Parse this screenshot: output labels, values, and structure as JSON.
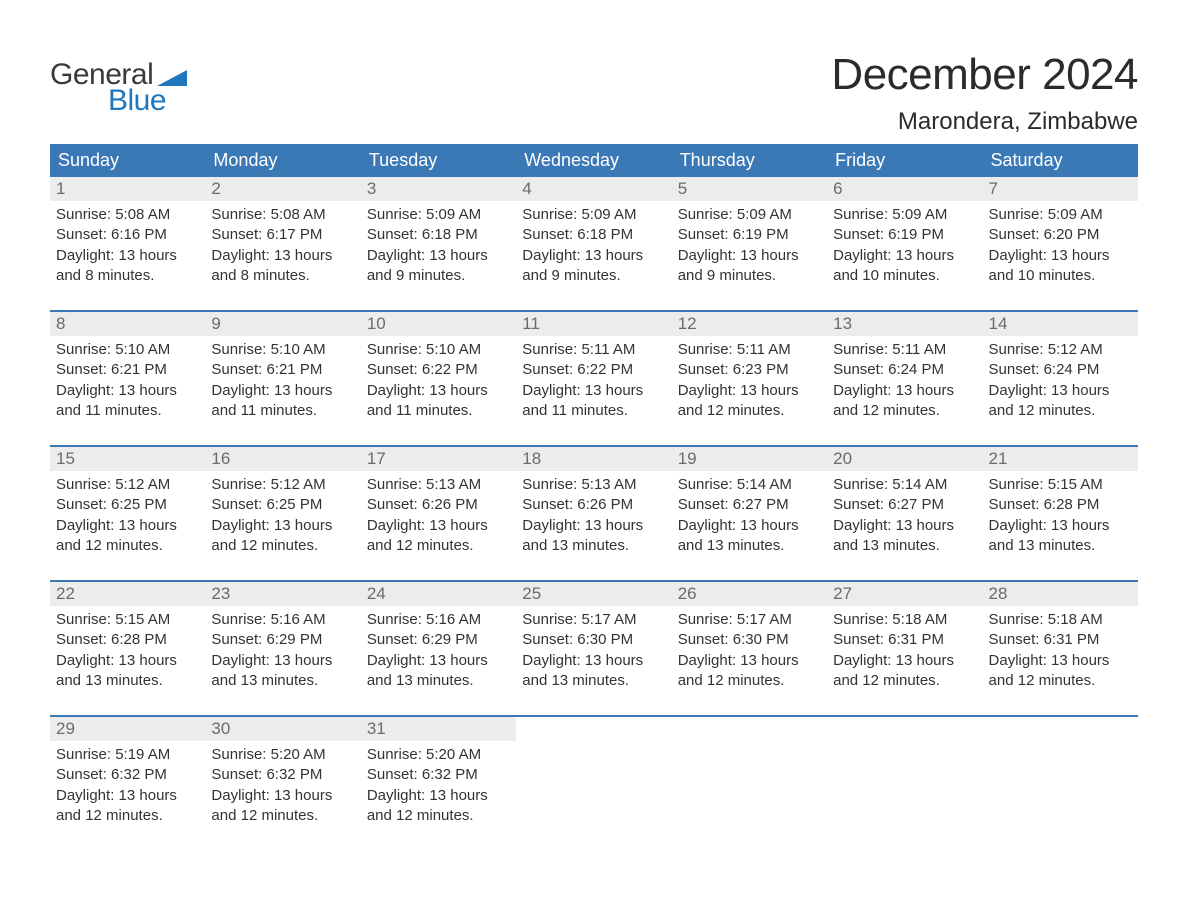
{
  "brand": {
    "word1": "General",
    "word2": "Blue",
    "word1_color": "#3a3a3a",
    "word2_color": "#1f77be",
    "flag_color": "#1f77be"
  },
  "header": {
    "month_title": "December 2024",
    "location": "Marondera, Zimbabwe",
    "title_color": "#2b2b2b"
  },
  "colors": {
    "header_bg": "#3b78b6",
    "header_text": "#ffffff",
    "daynum_bg": "#ececec",
    "daynum_text": "#6b6b6b",
    "body_text": "#333333",
    "rule": "#3b78b6",
    "page_bg": "#ffffff"
  },
  "fonts": {
    "month_title_size_pt": 33,
    "location_size_pt": 18,
    "weekday_size_pt": 13,
    "daynum_size_pt": 13,
    "body_size_pt": 11
  },
  "weekdays": [
    "Sunday",
    "Monday",
    "Tuesday",
    "Wednesday",
    "Thursday",
    "Friday",
    "Saturday"
  ],
  "labels": {
    "sunrise": "Sunrise:",
    "sunset": "Sunset:",
    "daylight": "Daylight:"
  },
  "weeks": [
    [
      {
        "day": "1",
        "sunrise": "5:08 AM",
        "sunset": "6:16 PM",
        "daylight": "13 hours and 8 minutes."
      },
      {
        "day": "2",
        "sunrise": "5:08 AM",
        "sunset": "6:17 PM",
        "daylight": "13 hours and 8 minutes."
      },
      {
        "day": "3",
        "sunrise": "5:09 AM",
        "sunset": "6:18 PM",
        "daylight": "13 hours and 9 minutes."
      },
      {
        "day": "4",
        "sunrise": "5:09 AM",
        "sunset": "6:18 PM",
        "daylight": "13 hours and 9 minutes."
      },
      {
        "day": "5",
        "sunrise": "5:09 AM",
        "sunset": "6:19 PM",
        "daylight": "13 hours and 9 minutes."
      },
      {
        "day": "6",
        "sunrise": "5:09 AM",
        "sunset": "6:19 PM",
        "daylight": "13 hours and 10 minutes."
      },
      {
        "day": "7",
        "sunrise": "5:09 AM",
        "sunset": "6:20 PM",
        "daylight": "13 hours and 10 minutes."
      }
    ],
    [
      {
        "day": "8",
        "sunrise": "5:10 AM",
        "sunset": "6:21 PM",
        "daylight": "13 hours and 11 minutes."
      },
      {
        "day": "9",
        "sunrise": "5:10 AM",
        "sunset": "6:21 PM",
        "daylight": "13 hours and 11 minutes."
      },
      {
        "day": "10",
        "sunrise": "5:10 AM",
        "sunset": "6:22 PM",
        "daylight": "13 hours and 11 minutes."
      },
      {
        "day": "11",
        "sunrise": "5:11 AM",
        "sunset": "6:22 PM",
        "daylight": "13 hours and 11 minutes."
      },
      {
        "day": "12",
        "sunrise": "5:11 AM",
        "sunset": "6:23 PM",
        "daylight": "13 hours and 12 minutes."
      },
      {
        "day": "13",
        "sunrise": "5:11 AM",
        "sunset": "6:24 PM",
        "daylight": "13 hours and 12 minutes."
      },
      {
        "day": "14",
        "sunrise": "5:12 AM",
        "sunset": "6:24 PM",
        "daylight": "13 hours and 12 minutes."
      }
    ],
    [
      {
        "day": "15",
        "sunrise": "5:12 AM",
        "sunset": "6:25 PM",
        "daylight": "13 hours and 12 minutes."
      },
      {
        "day": "16",
        "sunrise": "5:12 AM",
        "sunset": "6:25 PM",
        "daylight": "13 hours and 12 minutes."
      },
      {
        "day": "17",
        "sunrise": "5:13 AM",
        "sunset": "6:26 PM",
        "daylight": "13 hours and 12 minutes."
      },
      {
        "day": "18",
        "sunrise": "5:13 AM",
        "sunset": "6:26 PM",
        "daylight": "13 hours and 13 minutes."
      },
      {
        "day": "19",
        "sunrise": "5:14 AM",
        "sunset": "6:27 PM",
        "daylight": "13 hours and 13 minutes."
      },
      {
        "day": "20",
        "sunrise": "5:14 AM",
        "sunset": "6:27 PM",
        "daylight": "13 hours and 13 minutes."
      },
      {
        "day": "21",
        "sunrise": "5:15 AM",
        "sunset": "6:28 PM",
        "daylight": "13 hours and 13 minutes."
      }
    ],
    [
      {
        "day": "22",
        "sunrise": "5:15 AM",
        "sunset": "6:28 PM",
        "daylight": "13 hours and 13 minutes."
      },
      {
        "day": "23",
        "sunrise": "5:16 AM",
        "sunset": "6:29 PM",
        "daylight": "13 hours and 13 minutes."
      },
      {
        "day": "24",
        "sunrise": "5:16 AM",
        "sunset": "6:29 PM",
        "daylight": "13 hours and 13 minutes."
      },
      {
        "day": "25",
        "sunrise": "5:17 AM",
        "sunset": "6:30 PM",
        "daylight": "13 hours and 13 minutes."
      },
      {
        "day": "26",
        "sunrise": "5:17 AM",
        "sunset": "6:30 PM",
        "daylight": "13 hours and 12 minutes."
      },
      {
        "day": "27",
        "sunrise": "5:18 AM",
        "sunset": "6:31 PM",
        "daylight": "13 hours and 12 minutes."
      },
      {
        "day": "28",
        "sunrise": "5:18 AM",
        "sunset": "6:31 PM",
        "daylight": "13 hours and 12 minutes."
      }
    ],
    [
      {
        "day": "29",
        "sunrise": "5:19 AM",
        "sunset": "6:32 PM",
        "daylight": "13 hours and 12 minutes."
      },
      {
        "day": "30",
        "sunrise": "5:20 AM",
        "sunset": "6:32 PM",
        "daylight": "13 hours and 12 minutes."
      },
      {
        "day": "31",
        "sunrise": "5:20 AM",
        "sunset": "6:32 PM",
        "daylight": "13 hours and 12 minutes."
      },
      null,
      null,
      null,
      null
    ]
  ]
}
